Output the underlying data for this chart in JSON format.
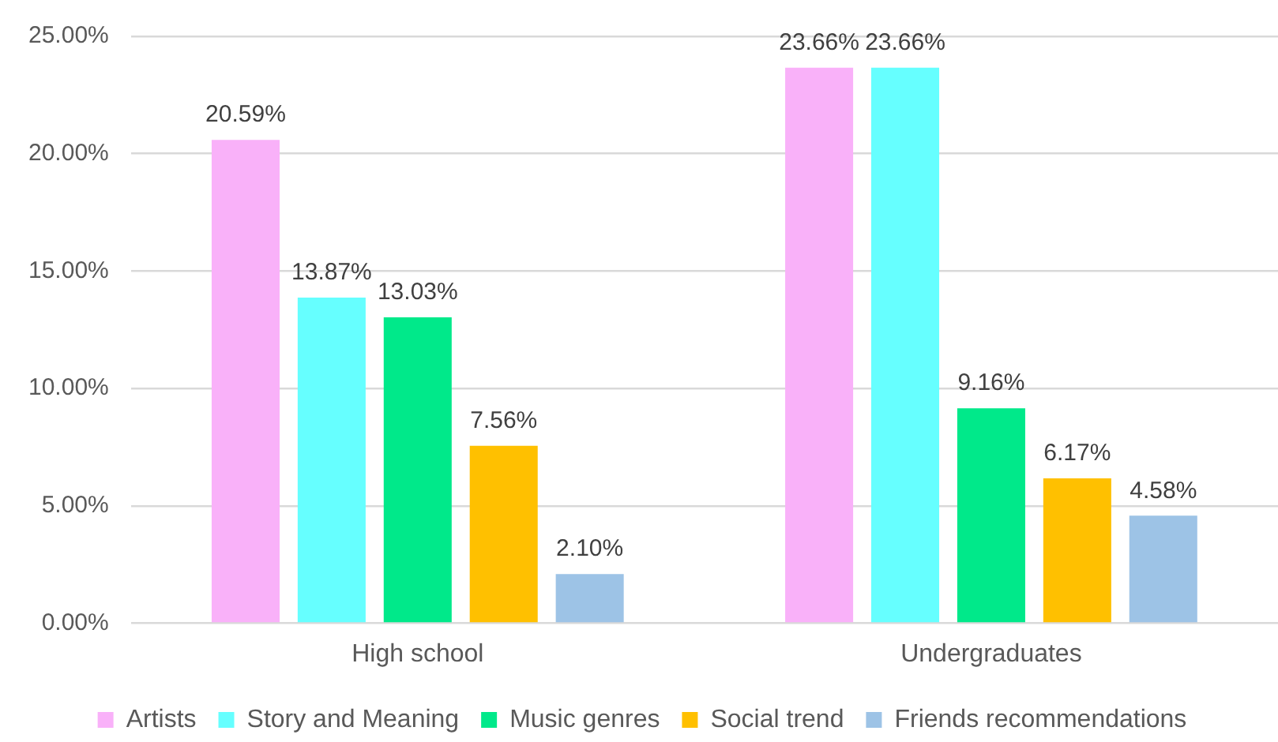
{
  "chart_data": {
    "type": "bar",
    "categories": [
      "High school",
      "Undergraduates"
    ],
    "series": [
      {
        "name": "Artists",
        "color": "#f9b1f9",
        "values": [
          20.59,
          23.66
        ],
        "value_labels": [
          "20.59%",
          "23.66%"
        ]
      },
      {
        "name": "Story and Meaning",
        "color": "#66ffff",
        "values": [
          13.87,
          23.66
        ],
        "value_labels": [
          "13.87%",
          "23.66%"
        ]
      },
      {
        "name": "Music genres",
        "color": "#00e98a",
        "values": [
          13.03,
          9.16
        ],
        "value_labels": [
          "13.03%",
          "9.16%"
        ]
      },
      {
        "name": "Social trend",
        "color": "#ffc000",
        "values": [
          7.56,
          6.17
        ],
        "value_labels": [
          "7.56%",
          "6.17%"
        ]
      },
      {
        "name": "Friends recommendations",
        "color": "#9dc3e6",
        "values": [
          2.1,
          4.58
        ],
        "value_labels": [
          "2.10%",
          "4.58%"
        ]
      }
    ],
    "ylim": [
      0,
      25
    ],
    "yticks": [
      {
        "value": 0,
        "label": "0.00%"
      },
      {
        "value": 5,
        "label": "5.00%"
      },
      {
        "value": 10,
        "label": "10.00%"
      },
      {
        "value": 15,
        "label": "15.00%"
      },
      {
        "value": 20,
        "label": "20.00%"
      },
      {
        "value": 25,
        "label": "25.00%"
      }
    ],
    "grid": "y",
    "legend": "bottom"
  }
}
